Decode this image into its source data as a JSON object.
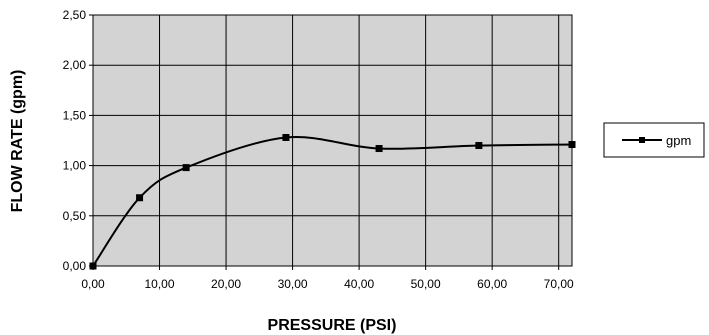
{
  "chart_data": {
    "type": "line",
    "xlabel": "PRESSURE (PSI)",
    "ylabel": "FLOW RATE (gpm)",
    "xlim": [
      0,
      72
    ],
    "ylim": [
      0,
      2.5
    ],
    "xticks": [
      "0,00",
      "10,00",
      "20,00",
      "30,00",
      "40,00",
      "50,00",
      "60,00",
      "70,00"
    ],
    "yticks": [
      "0,00",
      "0,50",
      "1,00",
      "1,50",
      "2,00",
      "2,50"
    ],
    "grid": true,
    "legend_position": "right",
    "plot_background": "#d3d3d3",
    "line_color": "#000000",
    "marker": "square",
    "smoothed": true,
    "series": [
      {
        "name": "gpm",
        "x": [
          0,
          7,
          14,
          29,
          43,
          58,
          72
        ],
        "y": [
          0.0,
          0.68,
          0.98,
          1.28,
          1.17,
          1.2,
          1.21
        ]
      }
    ]
  }
}
